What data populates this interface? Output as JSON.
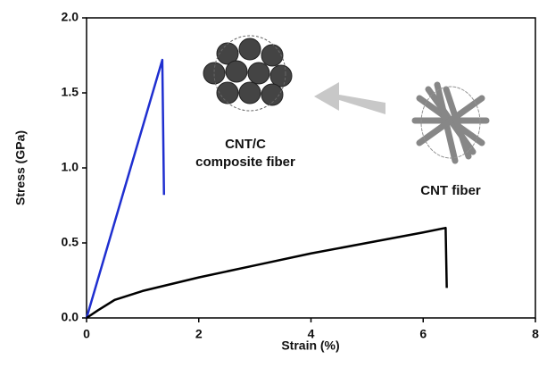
{
  "chart_data": {
    "type": "line",
    "xlabel": "Strain (%)",
    "ylabel": "Stress (GPa)",
    "annotations": [
      "CNT/C",
      "composite fiber",
      "CNT fiber"
    ],
    "xlim": [
      0,
      8
    ],
    "xticks": [
      0,
      2,
      4,
      6,
      8
    ],
    "ylim": [
      0,
      2
    ],
    "yticks": [
      {
        "value": 0,
        "label": "0.0"
      },
      {
        "value": 0.5,
        "label": "0.5"
      },
      {
        "value": 1,
        "label": "1.0"
      },
      {
        "value": 1.5,
        "label": "1.5"
      },
      {
        "value": 2,
        "label": "2.0"
      }
    ],
    "series": [
      {
        "color": "#1f2fd0",
        "x": [
          0,
          1.35,
          1.38
        ],
        "values": [
          0,
          1.72,
          0.82
        ]
      },
      {
        "color": "#000000",
        "x": [
          0,
          0.2,
          0.5,
          1,
          2,
          3,
          4,
          5,
          6,
          6.4,
          6.42
        ],
        "values": [
          0,
          0.05,
          0.12,
          0.18,
          0.27,
          0.35,
          0.43,
          0.5,
          0.57,
          0.6,
          0.2
        ]
      }
    ]
  }
}
